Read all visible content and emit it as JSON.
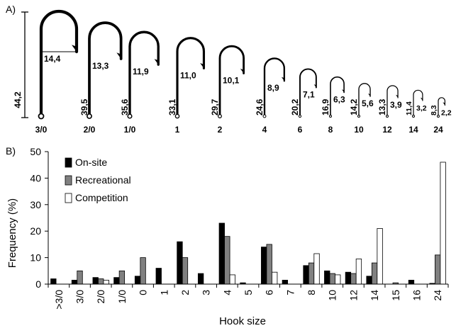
{
  "panel_a": {
    "label": "A)",
    "total_length": "44,2",
    "hooks": [
      {
        "size": "3/0",
        "length": "",
        "gap": "14,4"
      },
      {
        "size": "2/0",
        "length": "39,5",
        "gap": "13,3"
      },
      {
        "size": "1/0",
        "length": "35,6",
        "gap": "11,9"
      },
      {
        "size": "1",
        "length": "33,1",
        "gap": "11,0"
      },
      {
        "size": "2",
        "length": "29,7",
        "gap": "10,1"
      },
      {
        "size": "4",
        "length": "24,6",
        "gap": "8,9"
      },
      {
        "size": "6",
        "length": "20,2",
        "gap": "7,1"
      },
      {
        "size": "8",
        "length": "16,9",
        "gap": "6,3"
      },
      {
        "size": "10",
        "length": "14,2",
        "gap": "5,6"
      },
      {
        "size": "12",
        "length": "13,3",
        "gap": "3,9"
      },
      {
        "size": "14",
        "length": "11,4",
        "gap": "3,2"
      },
      {
        "size": "24",
        "length": "8,3",
        "gap": "2,2"
      }
    ]
  },
  "panel_b": {
    "label": "B)"
  },
  "chart_data": {
    "type": "bar",
    "xlabel": "Hook size",
    "ylabel": "Frequency (%)",
    "ylim": [
      0,
      50
    ],
    "yticks": [
      0,
      10,
      20,
      30,
      40,
      50
    ],
    "legend_position": "top-left",
    "categories": [
      ">3/0",
      "3/0",
      "2/0",
      "1/0",
      "0",
      "1",
      "2",
      "3",
      "4",
      "5",
      "6",
      "7",
      "8",
      "10",
      "12",
      "14",
      "15",
      "16",
      "24"
    ],
    "series": [
      {
        "name": "On-site",
        "color": "#000000",
        "values": [
          2,
          1.5,
          2.5,
          2.5,
          3,
          6,
          16,
          4,
          23,
          0.5,
          14,
          1.5,
          7,
          5,
          4.5,
          3,
          0,
          1.5,
          0.3
        ]
      },
      {
        "name": "Recreational",
        "color": "#808080",
        "values": [
          0,
          5,
          2,
          5,
          10,
          0,
          10,
          0,
          18,
          0,
          15,
          0,
          8,
          4,
          4,
          8,
          0.5,
          0,
          11
        ]
      },
      {
        "name": "Competition",
        "color": "#ffffff",
        "values": [
          0,
          0,
          1.5,
          0,
          0,
          0,
          0,
          0,
          3.5,
          0,
          4.5,
          0,
          11.5,
          3.5,
          9.5,
          21,
          0,
          0,
          46
        ]
      }
    ]
  }
}
